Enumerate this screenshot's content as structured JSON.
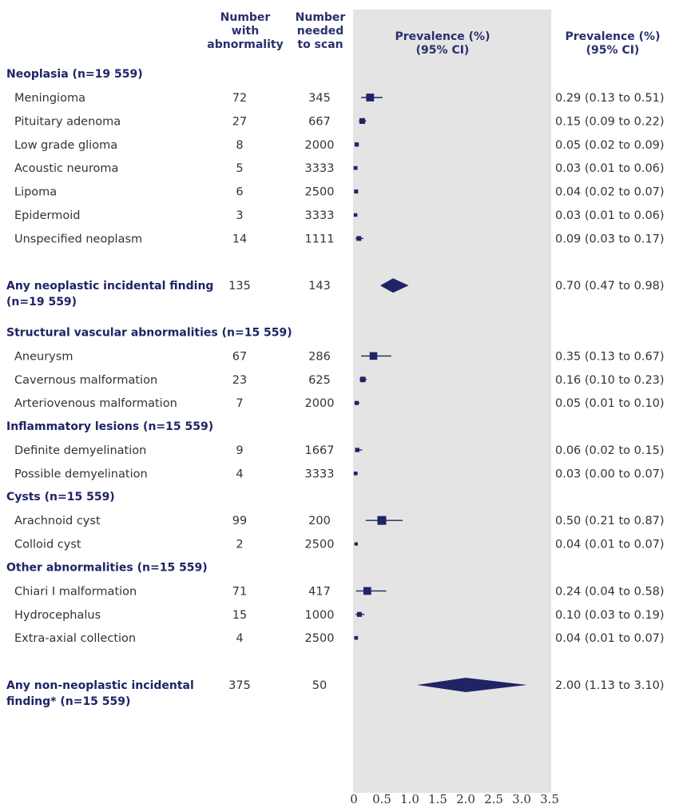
{
  "headers": {
    "number_with_abnormality": [
      "Number",
      "with",
      "abnormality"
    ],
    "number_needed_to_scan": [
      "Number",
      "needed",
      "to scan"
    ],
    "prevalence_plot": [
      "Prevalence (%)",
      "(95% CI)"
    ],
    "prevalence_text": [
      "Prevalence (%)",
      "(95% CI)"
    ]
  },
  "colors": {
    "marker": "#1f2466",
    "panel": "#e4e4e4",
    "text": "#333333"
  },
  "chart_data": {
    "type": "forest",
    "x_ticks": [
      "0",
      "0.5",
      "1.0",
      "1.5",
      "2.0",
      "2.5",
      "3.0",
      "3.5"
    ],
    "xlim": [
      0,
      3.5
    ],
    "rows": [
      {
        "kind": "section",
        "title": "Neoplasia (n=19 559)"
      },
      {
        "kind": "item",
        "label": "Meningioma",
        "n": "72",
        "nns": "345",
        "est": 0.29,
        "lo": 0.13,
        "hi": 0.51,
        "ci_text": "0.29 (0.13 to 0.51)"
      },
      {
        "kind": "item",
        "label": "Pituitary adenoma",
        "n": "27",
        "nns": "667",
        "est": 0.15,
        "lo": 0.09,
        "hi": 0.22,
        "ci_text": "0.15 (0.09 to 0.22)"
      },
      {
        "kind": "item",
        "label": "Low grade glioma",
        "n": "8",
        "nns": "2000",
        "est": 0.05,
        "lo": 0.02,
        "hi": 0.09,
        "ci_text": "0.05 (0.02 to 0.09)"
      },
      {
        "kind": "item",
        "label": "Acoustic neuroma",
        "n": "5",
        "nns": "3333",
        "est": 0.03,
        "lo": 0.01,
        "hi": 0.06,
        "ci_text": "0.03 (0.01 to 0.06)"
      },
      {
        "kind": "item",
        "label": "Lipoma",
        "n": "6",
        "nns": "2500",
        "est": 0.04,
        "lo": 0.02,
        "hi": 0.07,
        "ci_text": "0.04 (0.02 to 0.07)"
      },
      {
        "kind": "item",
        "label": "Epidermoid",
        "n": "3",
        "nns": "3333",
        "est": 0.03,
        "lo": 0.01,
        "hi": 0.06,
        "ci_text": "0.03 (0.01 to 0.06)"
      },
      {
        "kind": "item",
        "label": "Unspecified neoplasm",
        "n": "14",
        "nns": "1111",
        "est": 0.09,
        "lo": 0.03,
        "hi": 0.17,
        "ci_text": "0.09 (0.03 to 0.17)"
      },
      {
        "kind": "gap"
      },
      {
        "kind": "summary",
        "label": [
          "Any neoplastic incidental finding",
          "(n=19 559)"
        ],
        "n": "135",
        "nns": "143",
        "est": 0.7,
        "lo": 0.47,
        "hi": 0.98,
        "ci_text": "0.70 (0.47 to 0.98)"
      },
      {
        "kind": "gap"
      },
      {
        "kind": "gap"
      },
      {
        "kind": "section",
        "title": "Structural vascular abnormalities (n=15 559)"
      },
      {
        "kind": "item",
        "label": "Aneurysm",
        "n": "67",
        "nns": "286",
        "est": 0.35,
        "lo": 0.13,
        "hi": 0.67,
        "ci_text": "0.35 (0.13 to 0.67)"
      },
      {
        "kind": "item",
        "label": "Cavernous malformation",
        "n": "23",
        "nns": "625",
        "est": 0.16,
        "lo": 0.1,
        "hi": 0.23,
        "ci_text": "0.16 (0.10 to 0.23)"
      },
      {
        "kind": "item",
        "label": "Arteriovenous malformation",
        "n": "7",
        "nns": "2000",
        "est": 0.05,
        "lo": 0.01,
        "hi": 0.1,
        "ci_text": "0.05 (0.01 to 0.10)"
      },
      {
        "kind": "gap"
      },
      {
        "kind": "section",
        "title": "Inflammatory lesions (n=15 559)"
      },
      {
        "kind": "item",
        "label": "Definite demyelination",
        "n": "9",
        "nns": "1667",
        "est": 0.06,
        "lo": 0.02,
        "hi": 0.15,
        "ci_text": "0.06 (0.02 to 0.15)"
      },
      {
        "kind": "item",
        "label": "Possible demyelination",
        "n": "4",
        "nns": "3333",
        "est": 0.03,
        "lo": 0.0,
        "hi": 0.07,
        "ci_text": "0.03 (0.00 to 0.07)"
      },
      {
        "kind": "gap"
      },
      {
        "kind": "section",
        "title": "Cysts (n=15 559)"
      },
      {
        "kind": "item",
        "label": "Arachnoid cyst",
        "n": "99",
        "nns": "200",
        "est": 0.5,
        "lo": 0.21,
        "hi": 0.87,
        "ci_text": "0.50 (0.21 to 0.87)"
      },
      {
        "kind": "item",
        "label": "Colloid cyst",
        "n": "2",
        "nns": "2500",
        "est": 0.04,
        "lo": 0.01,
        "hi": 0.07,
        "ci_text": "0.04 (0.01 to 0.07)"
      },
      {
        "kind": "gap"
      },
      {
        "kind": "section",
        "title": "Other abnormalities (n=15 559)"
      },
      {
        "kind": "item",
        "label": "Chiari I malformation",
        "n": "71",
        "nns": "417",
        "est": 0.24,
        "lo": 0.04,
        "hi": 0.58,
        "ci_text": "0.24 (0.04 to 0.58)"
      },
      {
        "kind": "item",
        "label": "Hydrocephalus",
        "n": "15",
        "nns": "1000",
        "est": 0.1,
        "lo": 0.03,
        "hi": 0.19,
        "ci_text": "0.10 (0.03 to 0.19)"
      },
      {
        "kind": "item",
        "label": "Extra-axial collection",
        "n": "4",
        "nns": "2500",
        "est": 0.04,
        "lo": 0.01,
        "hi": 0.07,
        "ci_text": "0.04 (0.01 to 0.07)"
      },
      {
        "kind": "gap"
      },
      {
        "kind": "summary",
        "label": [
          "Any non-neoplastic incidental",
          "finding* (n=15 559)"
        ],
        "n": "375",
        "nns": "50",
        "est": 2.0,
        "lo": 1.13,
        "hi": 3.1,
        "ci_text": "2.00 (1.13 to 3.10)"
      }
    ]
  }
}
